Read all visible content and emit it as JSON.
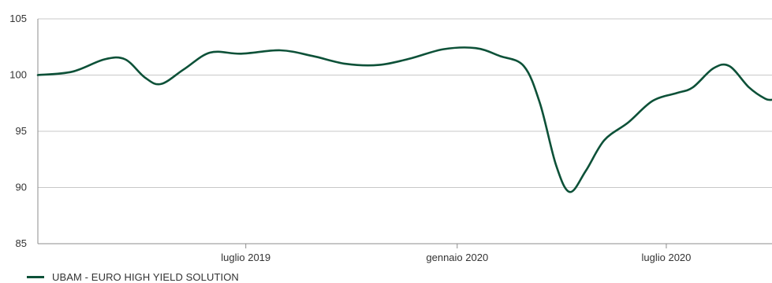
{
  "chart_data": {
    "type": "line",
    "title": "",
    "xlabel": "",
    "ylabel": "",
    "x_range": [
      "2019-01-01",
      "2020-10-01"
    ],
    "ylim": [
      85,
      105
    ],
    "yticks": [
      85,
      90,
      95,
      100,
      105
    ],
    "xticks": [
      {
        "date": "2019-07-01",
        "label": "luglio 2019"
      },
      {
        "date": "2020-01-01",
        "label": "gennaio 2020"
      },
      {
        "date": "2020-07-01",
        "label": "luglio 2020"
      }
    ],
    "grid": "horizontal",
    "legend_position": "bottom-left",
    "series": [
      {
        "name": "UBAM - EURO HIGH YIELD SOLUTION",
        "color": "#0d5138",
        "points": [
          {
            "x": "2019-01-01",
            "y": 100.0
          },
          {
            "x": "2019-01-31",
            "y": 100.3
          },
          {
            "x": "2019-02-28",
            "y": 101.4
          },
          {
            "x": "2019-03-18",
            "y": 101.4
          },
          {
            "x": "2019-04-04",
            "y": 99.8
          },
          {
            "x": "2019-04-18",
            "y": 99.2
          },
          {
            "x": "2019-05-08",
            "y": 100.5
          },
          {
            "x": "2019-05-31",
            "y": 102.0
          },
          {
            "x": "2019-06-27",
            "y": 101.9
          },
          {
            "x": "2019-07-31",
            "y": 102.2
          },
          {
            "x": "2019-08-28",
            "y": 101.7
          },
          {
            "x": "2019-09-26",
            "y": 101.0
          },
          {
            "x": "2019-10-25",
            "y": 100.9
          },
          {
            "x": "2019-11-22",
            "y": 101.5
          },
          {
            "x": "2019-12-20",
            "y": 102.3
          },
          {
            "x": "2020-01-17",
            "y": 102.4
          },
          {
            "x": "2020-02-07",
            "y": 101.7
          },
          {
            "x": "2020-02-28",
            "y": 100.8
          },
          {
            "x": "2020-03-13",
            "y": 97.5
          },
          {
            "x": "2020-03-27",
            "y": 92.0
          },
          {
            "x": "2020-04-08",
            "y": 89.6
          },
          {
            "x": "2020-04-22",
            "y": 91.5
          },
          {
            "x": "2020-05-08",
            "y": 94.2
          },
          {
            "x": "2020-05-29",
            "y": 95.8
          },
          {
            "x": "2020-06-19",
            "y": 97.7
          },
          {
            "x": "2020-07-10",
            "y": 98.4
          },
          {
            "x": "2020-07-24",
            "y": 98.9
          },
          {
            "x": "2020-08-11",
            "y": 100.6
          },
          {
            "x": "2020-08-25",
            "y": 100.8
          },
          {
            "x": "2020-09-11",
            "y": 98.9
          },
          {
            "x": "2020-09-25",
            "y": 97.9
          },
          {
            "x": "2020-10-01",
            "y": 97.8
          }
        ]
      }
    ]
  },
  "colors": {
    "line": "#0d5138",
    "grid": "#c8c8c8",
    "axis": "#8c8c8c"
  }
}
